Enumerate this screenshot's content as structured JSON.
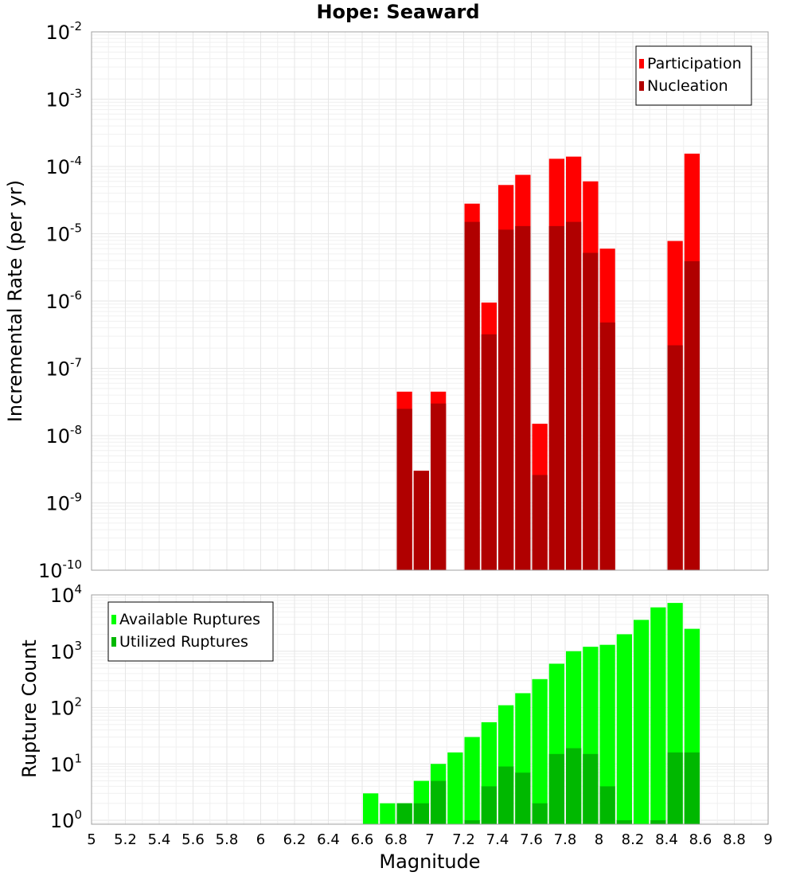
{
  "chart_data": [
    {
      "type": "bar",
      "title": "Hope: Seaward",
      "ylabel": "Incremental Rate (per yr)",
      "yscale": "log",
      "ylim": [
        1e-10,
        0.01
      ],
      "xlim": [
        5,
        9
      ],
      "grid": true,
      "legend": "top-right",
      "bar_centers": [
        6.85,
        6.95,
        7.05,
        7.25,
        7.35,
        7.45,
        7.55,
        7.65,
        7.75,
        7.85,
        7.95,
        8.05,
        8.45,
        8.55
      ],
      "series": [
        {
          "name": "Participation",
          "color": "#ff0000",
          "values": [
            4.5e-08,
            3e-09,
            4.5e-08,
            2.8e-05,
            9.5e-07,
            5.3e-05,
            7.5e-05,
            1.5e-08,
            0.00013,
            0.00014,
            6e-05,
            6e-06,
            7.8e-06,
            0.000155
          ]
        },
        {
          "name": "Nucleation",
          "color": "#b00000",
          "values": [
            2.5e-08,
            3e-09,
            3e-08,
            1.5e-05,
            3.2e-07,
            1.15e-05,
            1.3e-05,
            2.6e-09,
            1.3e-05,
            1.5e-05,
            5.2e-06,
            4.8e-07,
            2.2e-07,
            3.9e-06
          ]
        }
      ]
    },
    {
      "type": "bar",
      "xlabel": "Magnitude",
      "ylabel": "Rupture Count",
      "yscale": "log",
      "ylim": [
        0.85,
        10000
      ],
      "xlim": [
        5,
        9
      ],
      "grid": true,
      "legend": "top-left",
      "bar_centers": [
        6.65,
        6.75,
        6.85,
        6.95,
        7.05,
        7.15,
        7.25,
        7.35,
        7.45,
        7.55,
        7.65,
        7.75,
        7.85,
        7.95,
        8.05,
        8.15,
        8.25,
        8.35,
        8.45,
        8.55
      ],
      "series": [
        {
          "name": "Available Ruptures",
          "color": "#00ff00",
          "values": [
            3,
            2,
            2,
            5,
            10,
            16,
            30,
            55,
            110,
            180,
            320,
            600,
            1000,
            1200,
            1300,
            2000,
            3600,
            6000,
            7200,
            2500
          ]
        },
        {
          "name": "Utilized Ruptures",
          "color": "#00b800",
          "values": [
            0,
            0,
            2,
            2,
            5,
            0,
            1,
            4,
            9,
            7,
            2,
            15,
            19,
            15,
            4,
            1,
            0,
            1,
            16,
            16
          ]
        }
      ]
    }
  ],
  "x_ticks": [
    "5",
    "5.2",
    "5.4",
    "5.6",
    "5.8",
    "6",
    "6.2",
    "6.4",
    "6.6",
    "6.8",
    "7",
    "7.2",
    "7.4",
    "7.6",
    "7.8",
    "8",
    "8.2",
    "8.4",
    "8.6",
    "8.8",
    "9"
  ],
  "top_y_ticks": [
    {
      "base": "10",
      "exp": "-10",
      "v": -10
    },
    {
      "base": "10",
      "exp": "-9",
      "v": -9
    },
    {
      "base": "10",
      "exp": "-8",
      "v": -8
    },
    {
      "base": "10",
      "exp": "-7",
      "v": -7
    },
    {
      "base": "10",
      "exp": "-6",
      "v": -6
    },
    {
      "base": "10",
      "exp": "-5",
      "v": -5
    },
    {
      "base": "10",
      "exp": "-4",
      "v": -4
    },
    {
      "base": "10",
      "exp": "-3",
      "v": -3
    },
    {
      "base": "10",
      "exp": "-2",
      "v": -2
    }
  ],
  "bottom_y_ticks": [
    {
      "base": "10",
      "exp": "0",
      "v": 0
    },
    {
      "base": "10",
      "exp": "1",
      "v": 1
    },
    {
      "base": "10",
      "exp": "2",
      "v": 2
    },
    {
      "base": "10",
      "exp": "3",
      "v": 3
    },
    {
      "base": "10",
      "exp": "4",
      "v": 4
    }
  ]
}
